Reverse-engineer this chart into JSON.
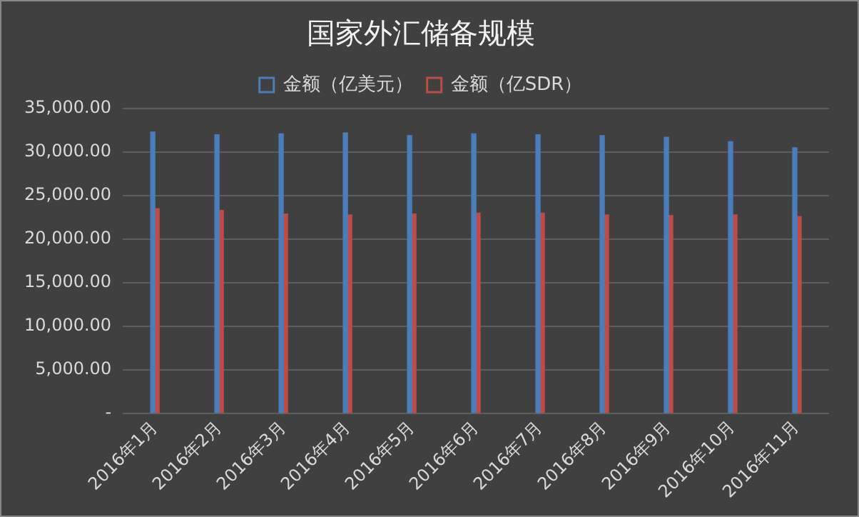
{
  "chart_data": {
    "type": "bar",
    "title": "国家外汇储备规模",
    "categories": [
      "2016年1月",
      "2016年2月",
      "2016年3月",
      "2016年4月",
      "2016年5月",
      "2016年6月",
      "2016年7月",
      "2016年8月",
      "2016年9月",
      "2016年10月",
      "2016年11月"
    ],
    "series": [
      {
        "name": "金额（亿美元）",
        "color": "#4a7ebb",
        "values": [
          32300,
          32000,
          32100,
          32200,
          31900,
          32100,
          32000,
          31900,
          31700,
          31200,
          30500
        ]
      },
      {
        "name": "金额（亿SDR）",
        "color": "#be4b48",
        "values": [
          23500,
          23300,
          22900,
          22800,
          22900,
          23000,
          23000,
          22800,
          22700,
          22800,
          22600
        ]
      }
    ],
    "ylim": [
      0,
      35000
    ],
    "yticks": [
      {
        "value": 0,
        "label": "-"
      },
      {
        "value": 5000,
        "label": "5,000.00"
      },
      {
        "value": 10000,
        "label": "10,000.00"
      },
      {
        "value": 15000,
        "label": "15,000.00"
      },
      {
        "value": 20000,
        "label": "20,000.00"
      },
      {
        "value": 25000,
        "label": "25,000.00"
      },
      {
        "value": 30000,
        "label": "30,000.00"
      },
      {
        "value": 35000,
        "label": "35,000.00"
      }
    ],
    "grid": "y",
    "legend": "top"
  }
}
